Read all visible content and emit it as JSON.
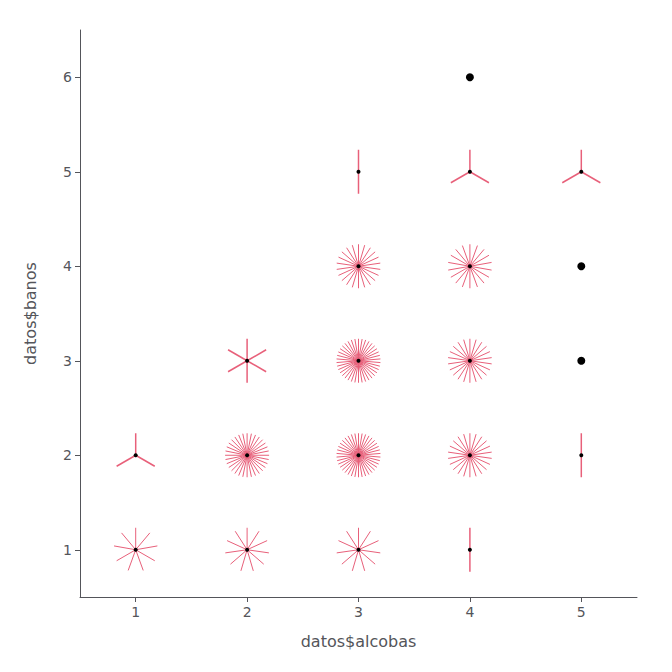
{
  "chart_data": {
    "type": "sunflower",
    "xlabel": "datos$alcobas",
    "ylabel": "datos$banos",
    "x": [
      1,
      1,
      2,
      2,
      2,
      3,
      3,
      3,
      3,
      3,
      4,
      4,
      4,
      4,
      4,
      4,
      5,
      5,
      5,
      5
    ],
    "values": [
      1,
      2,
      1,
      2,
      3,
      1,
      2,
      3,
      4,
      5,
      1,
      2,
      3,
      4,
      5,
      6,
      2,
      3,
      4,
      5
    ],
    "counts": [
      9,
      3,
      11,
      32,
      6,
      11,
      38,
      38,
      22,
      2,
      2,
      22,
      22,
      18,
      3,
      1,
      2,
      1,
      1,
      3
    ],
    "color": "#E8607A",
    "xlim": [
      0.5,
      5.5
    ],
    "ylim": [
      0.5,
      6.5
    ],
    "xticks": [
      1,
      2,
      3,
      4,
      5
    ],
    "yticks": [
      1,
      2,
      3,
      4,
      5,
      6
    ],
    "grid": false
  }
}
